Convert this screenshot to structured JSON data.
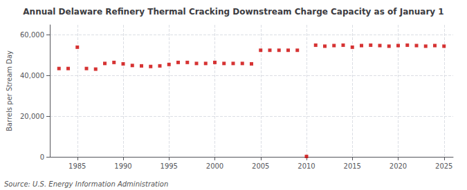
{
  "chart_data": {
    "type": "scatter",
    "title": "Annual Delaware Refinery Thermal Cracking Downstream Charge Capacity as of January 1",
    "ylabel": "Barrels per Stream Day",
    "annotation": "Source: U.S. Energy Information Administration",
    "x": [
      1983,
      1984,
      1985,
      1986,
      1987,
      1988,
      1989,
      1990,
      1991,
      1992,
      1993,
      1994,
      1995,
      1996,
      1997,
      1998,
      1999,
      2000,
      2001,
      2002,
      2003,
      2004,
      2005,
      2006,
      2007,
      2008,
      2009,
      2010,
      2011,
      2012,
      2013,
      2014,
      2015,
      2016,
      2017,
      2018,
      2019,
      2020,
      2021,
      2022,
      2023,
      2024,
      2025
    ],
    "values": [
      43500,
      43500,
      54000,
      43500,
      43200,
      46000,
      46500,
      45800,
      45000,
      44800,
      44500,
      44800,
      45500,
      46500,
      46500,
      46000,
      46000,
      46500,
      46000,
      46000,
      46000,
      45800,
      52500,
      52500,
      52500,
      52500,
      52500,
      200,
      55000,
      54500,
      54800,
      55000,
      54000,
      54800,
      55000,
      54800,
      54500,
      54800,
      55000,
      54800,
      54500,
      54800,
      54500
    ],
    "color": "#cc0000",
    "marker": "square",
    "xlim": [
      1982,
      2026
    ],
    "xticks": [
      1985,
      1990,
      1995,
      2000,
      2005,
      2010,
      2015,
      2020,
      2025
    ],
    "ylim": [
      0,
      65000
    ],
    "yticks": [
      0,
      {
        "value": 20000,
        "label": "20,000"
      },
      {
        "value": 40000,
        "label": "40,000"
      },
      {
        "value": 60000,
        "label": "60,000"
      }
    ],
    "grid": true
  }
}
